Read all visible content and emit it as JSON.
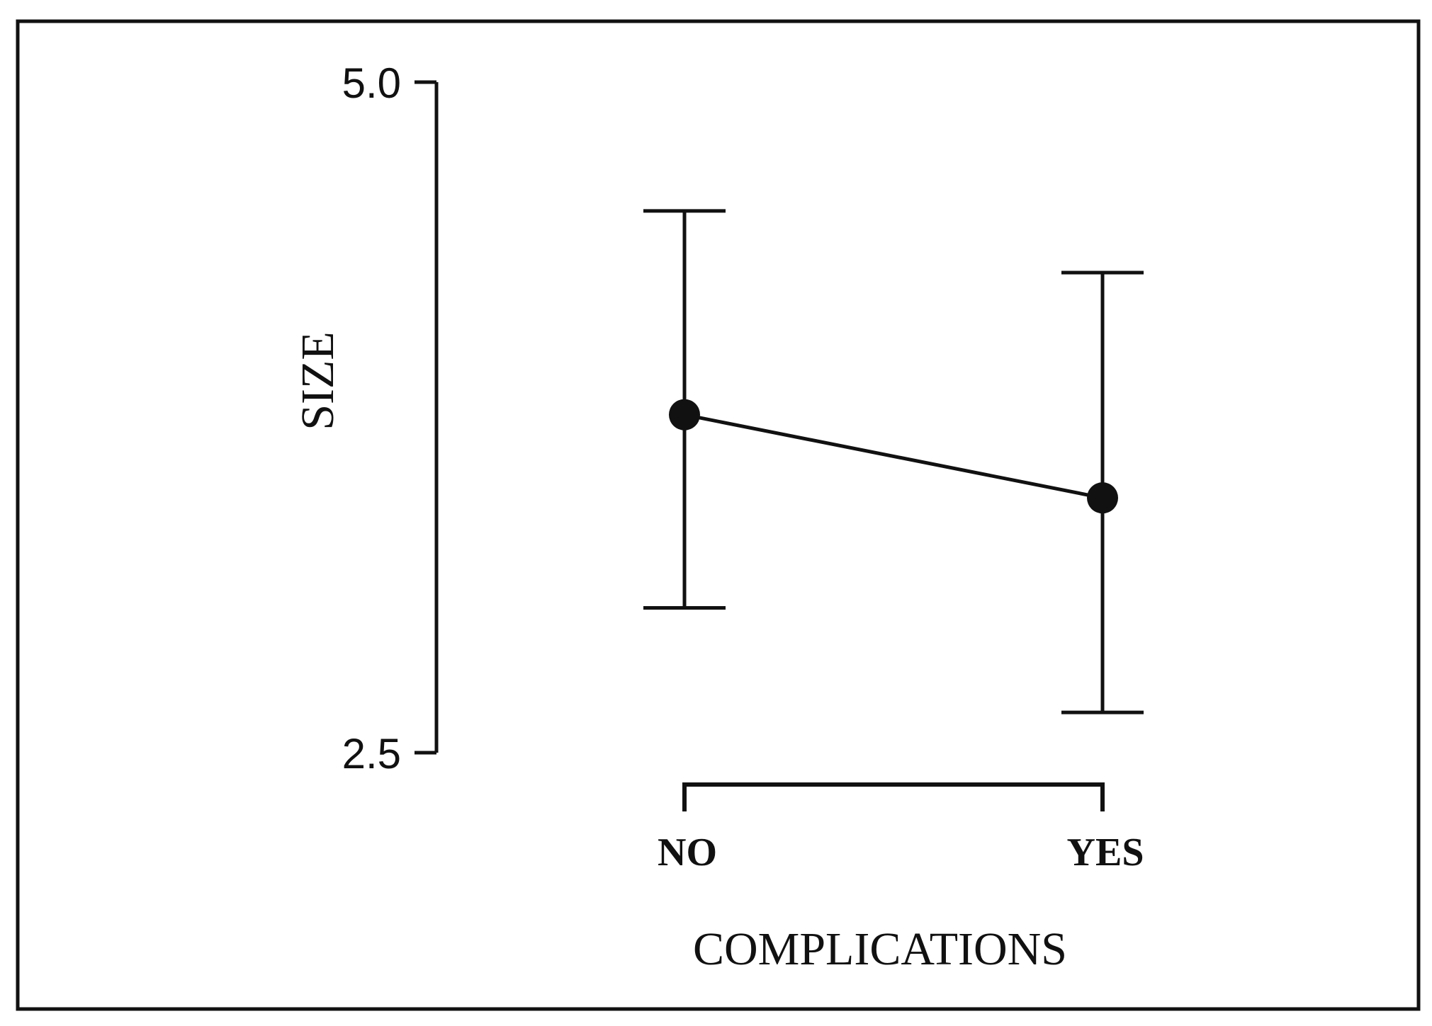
{
  "chart_data": {
    "type": "line",
    "title": "",
    "xlabel": "COMPLICATIONS",
    "ylabel": "SIZE",
    "ylim": [
      2.5,
      5.0
    ],
    "yticks": [
      5.0,
      2.5
    ],
    "ytick_labels": [
      "5.0",
      "2.5"
    ],
    "categories": [
      "NO",
      "YES"
    ],
    "series": [
      {
        "values": [
          3.76,
          3.45
        ],
        "error_low": [
          3.04,
          2.65
        ],
        "error_high": [
          4.52,
          4.29
        ]
      }
    ],
    "grid": false,
    "legend": "none",
    "colors": {
      "line": "#111111",
      "frame": "#111111"
    }
  }
}
